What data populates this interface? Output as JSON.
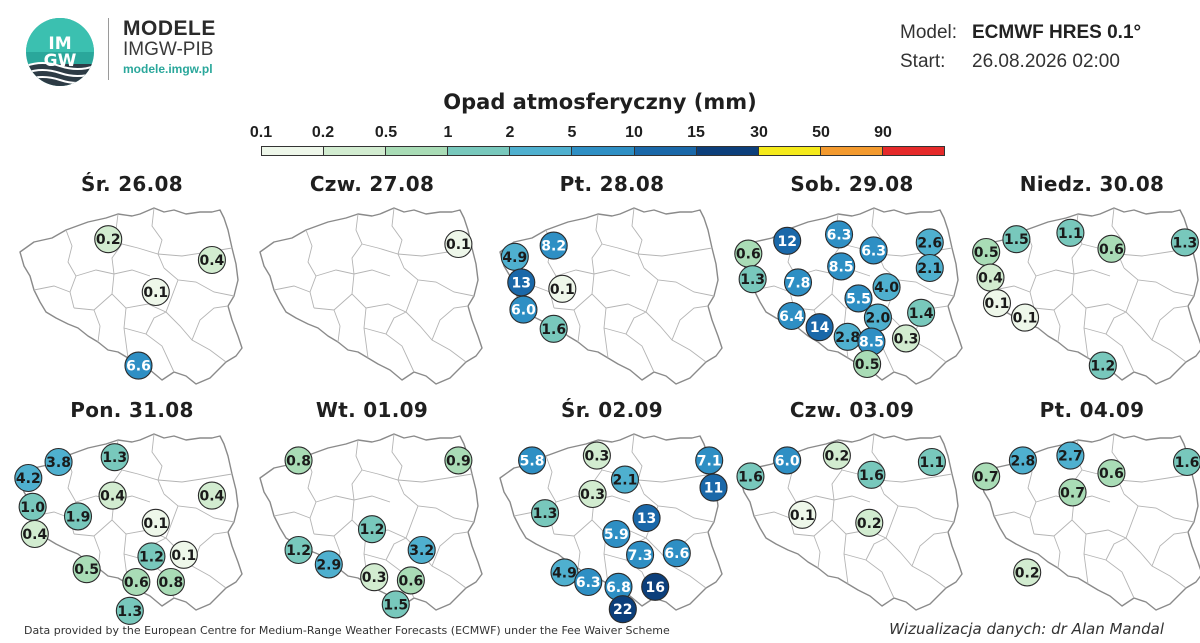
{
  "brand": {
    "logo_text": "IMGW",
    "title": "MODELE",
    "subtitle": "IMGW-PIB",
    "url": "modele.imgw.pl",
    "colors": {
      "teal": "#2aa79b",
      "dark": "#2d3b45"
    }
  },
  "meta": {
    "model_label": "Model:",
    "model_value": "ECMWF HRES 0.1°",
    "start_label": "Start:",
    "start_value": "26.08.2026 02:00"
  },
  "legend": {
    "title": "Opad atmosferyczny (mm)",
    "ticks": [
      "0.1",
      "0.2",
      "0.5",
      "1",
      "2",
      "5",
      "10",
      "15",
      "30",
      "50",
      "90"
    ],
    "colors": [
      "#eef7ea",
      "#d2ecd0",
      "#a9dcb6",
      "#78c8bc",
      "#4fb0cf",
      "#2e8fc4",
      "#1a68a9",
      "#0c3f7b",
      "#f5ea1b",
      "#f39a2e",
      "#e52a2a"
    ]
  },
  "panels": [
    {
      "title": "Śr. 26.08",
      "bubbles": [
        [
          "0.2",
          0.39,
          0.17
        ],
        [
          "0.4",
          0.87,
          0.3
        ],
        [
          "0.1",
          0.61,
          0.5
        ],
        [
          "6.6",
          0.53,
          0.96
        ]
      ]
    },
    {
      "title": "Czw. 27.08",
      "bubbles": [
        [
          "0.1",
          0.9,
          0.2
        ]
      ]
    },
    {
      "title": "Pt. 28.08",
      "bubbles": [
        [
          "8.2",
          0.23,
          0.21
        ],
        [
          "4.9",
          0.05,
          0.28
        ],
        [
          "13",
          0.08,
          0.44
        ],
        [
          "0.1",
          0.27,
          0.48
        ],
        [
          "6.0",
          0.09,
          0.61
        ],
        [
          "1.6",
          0.23,
          0.73
        ]
      ]
    },
    {
      "title": "Sob. 29.08",
      "bubbles": [
        [
          "12",
          0.2,
          0.18
        ],
        [
          "6.3",
          0.44,
          0.14
        ],
        [
          "2.6",
          0.86,
          0.19
        ],
        [
          "0.6",
          0.02,
          0.26
        ],
        [
          "6.3",
          0.6,
          0.24
        ],
        [
          "8.5",
          0.45,
          0.34
        ],
        [
          "2.1",
          0.86,
          0.35
        ],
        [
          "1.3",
          0.04,
          0.42
        ],
        [
          "7.8",
          0.25,
          0.44
        ],
        [
          "4.0",
          0.66,
          0.47
        ],
        [
          "5.5",
          0.53,
          0.54
        ],
        [
          "1.4",
          0.82,
          0.63
        ],
        [
          "6.4",
          0.22,
          0.65
        ],
        [
          "2.0",
          0.62,
          0.66
        ],
        [
          "14",
          0.35,
          0.72
        ],
        [
          "2.8",
          0.48,
          0.78
        ],
        [
          "8.5",
          0.59,
          0.81
        ],
        [
          "0.3",
          0.75,
          0.79
        ],
        [
          "0.5",
          0.57,
          0.95
        ]
      ]
    },
    {
      "title": "Niedz. 30.08",
      "bubbles": [
        [
          "1.5",
          0.15,
          0.17
        ],
        [
          "1.1",
          0.4,
          0.13
        ],
        [
          "1.3",
          0.93,
          0.19
        ],
        [
          "0.5",
          0.01,
          0.25
        ],
        [
          "0.6",
          0.59,
          0.23
        ],
        [
          "0.4",
          0.03,
          0.41
        ],
        [
          "0.1",
          0.06,
          0.57
        ],
        [
          "0.1",
          0.19,
          0.66
        ],
        [
          "1.2",
          0.55,
          0.96
        ]
      ]
    },
    {
      "title": "Pon. 31.08",
      "bubbles": [
        [
          "3.8",
          0.16,
          0.15
        ],
        [
          "1.3",
          0.42,
          0.12
        ],
        [
          "4.2",
          0.02,
          0.25
        ],
        [
          "0.4",
          0.41,
          0.36
        ],
        [
          "0.4",
          0.87,
          0.36
        ],
        [
          "1.0",
          0.04,
          0.43
        ],
        [
          "1.9",
          0.25,
          0.49
        ],
        [
          "0.1",
          0.61,
          0.53
        ],
        [
          "0.4",
          0.05,
          0.6
        ],
        [
          "1.2",
          0.59,
          0.74
        ],
        [
          "0.1",
          0.74,
          0.73
        ],
        [
          "0.5",
          0.29,
          0.82
        ],
        [
          "0.6",
          0.52,
          0.9
        ],
        [
          "0.8",
          0.68,
          0.9
        ],
        [
          "1.3",
          0.49,
          1.08
        ]
      ]
    },
    {
      "title": "Wt. 01.09",
      "bubbles": [
        [
          "0.8",
          0.16,
          0.14
        ],
        [
          "0.9",
          0.9,
          0.14
        ],
        [
          "1.2",
          0.5,
          0.57
        ],
        [
          "1.2",
          0.16,
          0.7
        ],
        [
          "3.2",
          0.73,
          0.7
        ],
        [
          "2.9",
          0.3,
          0.79
        ],
        [
          "0.3",
          0.51,
          0.87
        ],
        [
          "0.6",
          0.68,
          0.89
        ],
        [
          "1.5",
          0.61,
          1.04
        ]
      ]
    },
    {
      "title": "Śr. 02.09",
      "bubbles": [
        [
          "5.8",
          0.13,
          0.14
        ],
        [
          "0.3",
          0.43,
          0.11
        ],
        [
          "7.1",
          0.95,
          0.14
        ],
        [
          "2.1",
          0.56,
          0.26
        ],
        [
          "11",
          0.97,
          0.31
        ],
        [
          "0.3",
          0.41,
          0.35
        ],
        [
          "1.3",
          0.19,
          0.47
        ],
        [
          "13",
          0.66,
          0.5
        ],
        [
          "5.9",
          0.52,
          0.6
        ],
        [
          "7.3",
          0.63,
          0.73
        ],
        [
          "6.6",
          0.8,
          0.72
        ],
        [
          "4.9",
          0.28,
          0.84
        ],
        [
          "6.3",
          0.39,
          0.9
        ],
        [
          "6.8",
          0.53,
          0.93
        ],
        [
          "16",
          0.7,
          0.93
        ],
        [
          "22",
          0.55,
          1.07
        ]
      ]
    },
    {
      "title": "Czw. 03.09",
      "bubbles": [
        [
          "6.0",
          0.2,
          0.14
        ],
        [
          "0.2",
          0.43,
          0.11
        ],
        [
          "1.1",
          0.87,
          0.15
        ],
        [
          "1.6",
          0.03,
          0.24
        ],
        [
          "1.6",
          0.59,
          0.23
        ],
        [
          "0.1",
          0.27,
          0.48
        ],
        [
          "0.2",
          0.58,
          0.53
        ]
      ]
    },
    {
      "title": "Pt. 04.09",
      "bubbles": [
        [
          "2.8",
          0.18,
          0.14
        ],
        [
          "2.7",
          0.4,
          0.11
        ],
        [
          "1.6",
          0.94,
          0.15
        ],
        [
          "0.7",
          0.01,
          0.24
        ],
        [
          "0.6",
          0.59,
          0.22
        ],
        [
          "0.7",
          0.41,
          0.34
        ],
        [
          "0.2",
          0.2,
          0.84
        ]
      ]
    }
  ],
  "footer": {
    "left": "Data provided by the European Centre for Medium-Range Weather Forecasts (ECMWF) under the Fee Waiver Scheme",
    "right": "Wizualizacja danych: dr Alan Mandal"
  }
}
